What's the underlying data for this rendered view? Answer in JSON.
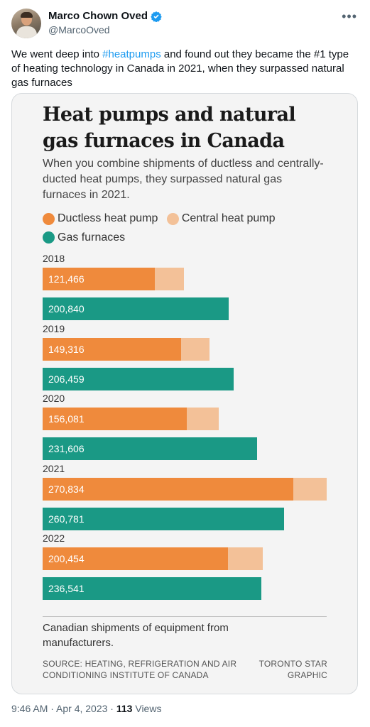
{
  "tweet": {
    "author_name": "Marco Chown Oved",
    "handle": "@MarcoOved",
    "text_before": "We went deep into ",
    "hashtag": "#heatpumps",
    "text_after": " and found out they became the #1 type of heating technology in Canada in 2021, when they surpassed natural gas furnaces",
    "time": "9:46 AM · Apr 4, 2023 · ",
    "views_count": "113",
    "views_label": " Views",
    "more_icon": "more-icon",
    "verified_icon": "verified-badge-icon"
  },
  "colors": {
    "ductless": "#ef8a3c",
    "central": "#f3c198",
    "gas": "#1a9985",
    "link": "#1d9bf0"
  },
  "chart_data": {
    "type": "bar",
    "title": "Heat pumps and natural gas furnaces in Canada",
    "subtitle": "When you combine shipments of ductless and centrally-ducted heat pumps, they surpassed natural gas furnaces in 2021.",
    "legend": [
      "Ductless heat pump",
      "Central heat pump",
      "Gas furnaces"
    ],
    "categories": [
      "2018",
      "2019",
      "2020",
      "2021",
      "2022"
    ],
    "series": [
      {
        "name": "Ductless heat pump",
        "values": [
          121466,
          149316,
          156081,
          270834,
          200454
        ]
      },
      {
        "name": "Central heat pump",
        "values": [
          31000,
          31000,
          34000,
          36000,
          37000
        ]
      },
      {
        "name": "Gas furnaces",
        "values": [
          200840,
          206459,
          231606,
          260781,
          236541
        ]
      }
    ],
    "heat_pump_labels": [
      "121,466",
      "149,316",
      "156,081",
      "270,834",
      "200,454"
    ],
    "gas_labels": [
      "200,840",
      "206,459",
      "231,606",
      "260,781",
      "236,541"
    ],
    "xlim": [
      0,
      306834
    ],
    "note": "Canadian shipments of equipment from manufacturers.",
    "source": "SOURCE: HEATING, REFRIGERATION AND AIR CONDITIONING INSTITUTE OF CANADA",
    "credit": "TORONTO STAR GRAPHIC"
  }
}
